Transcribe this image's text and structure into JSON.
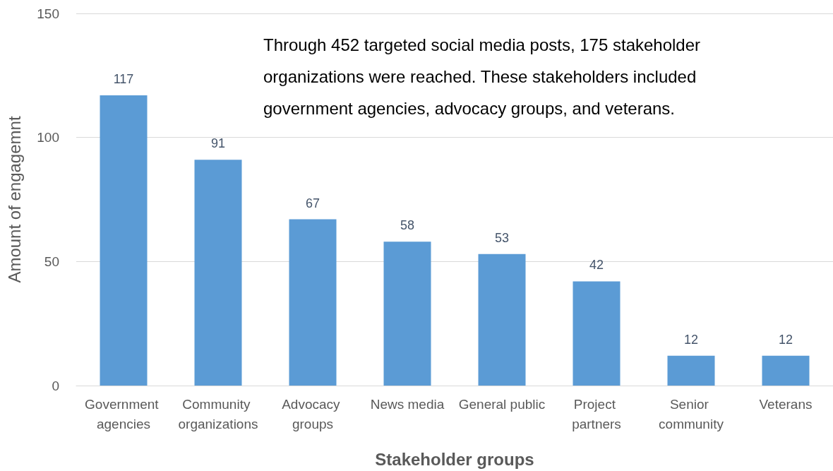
{
  "chart_data": {
    "type": "bar",
    "xlabel": "Stakeholder groups",
    "ylabel": "Amount of engagemnt",
    "annotations": [
      "Through 452 targeted social media posts, 175 stakeholder organizations were reached. These stakeholders included government agencies, advocacy groups, and veterans."
    ],
    "categories": [
      "Government agencies",
      "Community organizations",
      "Advocacy groups",
      "News media",
      "General public",
      "Project partners",
      "Senior community",
      "Veterans"
    ],
    "values": [
      117,
      91,
      67,
      58,
      53,
      42,
      12,
      12
    ],
    "color": "#5b9bd5",
    "ylim": [
      0,
      150
    ],
    "yticks": [
      0,
      50,
      100,
      150
    ],
    "grid": "y",
    "data_labels": true
  }
}
